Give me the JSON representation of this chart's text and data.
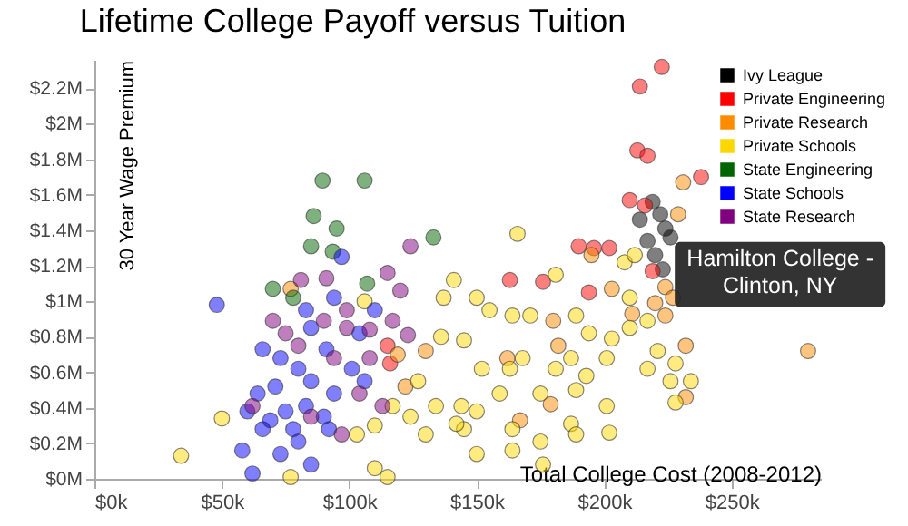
{
  "chart_data": {
    "type": "scatter",
    "title": "Lifetime College Payoff versus Tuition",
    "xlabel": "Total College Cost (2008-2012)",
    "ylabel": "30 Year Wage Premium",
    "xlim": [
      0,
      285000
    ],
    "ylim": [
      0,
      2360000
    ],
    "xticks": [
      {
        "value": 0,
        "label": "$0k"
      },
      {
        "value": 50000,
        "label": "$50k"
      },
      {
        "value": 100000,
        "label": "$100k"
      },
      {
        "value": 150000,
        "label": "$150k"
      },
      {
        "value": 200000,
        "label": "$200k"
      },
      {
        "value": 250000,
        "label": "$250k"
      }
    ],
    "yticks": [
      {
        "value": 0,
        "label": "$0M"
      },
      {
        "value": 200000,
        "label": "$0.2M"
      },
      {
        "value": 400000,
        "label": "$0.4M"
      },
      {
        "value": 600000,
        "label": "$0.6M"
      },
      {
        "value": 800000,
        "label": "$0.8M"
      },
      {
        "value": 1000000,
        "label": "$1M"
      },
      {
        "value": 1200000,
        "label": "$1.2M"
      },
      {
        "value": 1400000,
        "label": "$1.4M"
      },
      {
        "value": 1600000,
        "label": "$1.6M"
      },
      {
        "value": 1800000,
        "label": "$1.8M"
      },
      {
        "value": 2000000,
        "label": "$2M"
      },
      {
        "value": 2200000,
        "label": "$2.2M"
      }
    ],
    "grid": false,
    "legend": "top right",
    "marker": "circle",
    "annotations": [
      {
        "text": "Hamilton College -\nClinton, NY",
        "x": 222000,
        "y": 1150000
      }
    ],
    "series": [
      {
        "name": "Ivy League",
        "color": "#000000",
        "x": [
          219000,
          222000,
          214000,
          224000,
          220000,
          223000,
          217000,
          226000
        ],
        "values": [
          1560000,
          1490000,
          1460000,
          1410000,
          1260000,
          1180000,
          1340000,
          1360000
        ]
      },
      {
        "name": "Private Engineering",
        "color": "#ff0000",
        "x": [
          222600,
          214000,
          213000,
          217000,
          238000,
          210000,
          216000,
          190000,
          196000,
          202000,
          163000,
          176000,
          194000,
          219000,
          116000,
          115000
        ],
        "values": [
          2320000,
          2210000,
          1850000,
          1820000,
          1700000,
          1570000,
          1540000,
          1310000,
          1300000,
          1300000,
          1120000,
          1110000,
          1050000,
          1170000,
          650000,
          750000
        ]
      },
      {
        "name": "Private Research",
        "color": "#ff8c00",
        "x": [
          231000,
          229000,
          195000,
          203000,
          224000,
          227000,
          220000,
          180000,
          211000,
          232000,
          182000,
          280000,
          162000,
          179000,
          167000,
          232000,
          224000,
          77000,
          130000,
          122000,
          119000
        ],
        "values": [
          1670000,
          1490000,
          1260000,
          1070000,
          1080000,
          1020000,
          990000,
          890000,
          930000,
          750000,
          750000,
          720000,
          680000,
          420000,
          330000,
          460000,
          920000,
          1070000,
          720000,
          520000,
          700000
        ]
      },
      {
        "name": "Private Schools",
        "color": "#ffd700",
        "x": [
          34000,
          50000,
          77000,
          103000,
          110000,
          115000,
          110000,
          117000,
          137000,
          136000,
          106000,
          127000,
          134000,
          130000,
          124000,
          166000,
          141000,
          181000,
          155000,
          164000,
          189000,
          145000,
          152000,
          168000,
          187000,
          201000,
          210000,
          208000,
          212000,
          144000,
          159000,
          175000,
          189000,
          201000,
          217000,
          226000,
          228000,
          234000,
          228000,
          145000,
          164000,
          175000,
          187000,
          202000,
          150000,
          164000,
          176000,
          189000,
          142000,
          150000,
          163000,
          181000,
          194000,
          210000,
          217000,
          221000,
          203000,
          193000,
          171000,
          150000
        ],
        "values": [
          130000,
          340000,
          10000,
          250000,
          300000,
          10000,
          60000,
          410000,
          1020000,
          800000,
          1000000,
          550000,
          410000,
          250000,
          350000,
          1380000,
          1120000,
          1150000,
          950000,
          920000,
          920000,
          780000,
          620000,
          680000,
          680000,
          680000,
          850000,
          1220000,
          1260000,
          410000,
          480000,
          480000,
          500000,
          410000,
          620000,
          550000,
          650000,
          550000,
          430000,
          280000,
          280000,
          210000,
          310000,
          260000,
          140000,
          160000,
          80000,
          250000,
          310000,
          380000,
          620000,
          620000,
          820000,
          1020000,
          890000,
          720000,
          790000,
          580000,
          920000,
          1020000
        ]
      },
      {
        "name": "State Engineering",
        "color": "#006400",
        "x": [
          89500,
          106000,
          86000,
          95000,
          85000,
          93500,
          133000,
          70000,
          78000,
          107000
        ],
        "values": [
          1680000,
          1680000,
          1480000,
          1410000,
          1310000,
          1280000,
          1360000,
          1070000,
          1020000,
          1100000
        ]
      },
      {
        "name": "State Schools",
        "color": "#0000ff",
        "x": [
          48000,
          97000,
          62000,
          58000,
          66000,
          73000,
          80000,
          66000,
          73000,
          80000,
          85000,
          71000,
          64000,
          75000,
          83000,
          90000,
          94000,
          101000,
          104000,
          110000,
          94000,
          85000,
          78000,
          60000,
          92000,
          83000,
          106000,
          91000,
          69000,
          85000
        ],
        "values": [
          980000,
          1250000,
          30000,
          160000,
          280000,
          140000,
          210000,
          730000,
          680000,
          620000,
          550000,
          520000,
          480000,
          380000,
          410000,
          350000,
          480000,
          620000,
          820000,
          950000,
          1020000,
          850000,
          280000,
          380000,
          280000,
          950000,
          550000,
          730000,
          330000,
          80000
        ]
      },
      {
        "name": "State Research",
        "color": "#800080",
        "x": [
          124000,
          81000,
          91000,
          115000,
          120000,
          70000,
          75000,
          90000,
          99000,
          108000,
          117000,
          123000,
          80000,
          94000,
          108000,
          62000,
          97000,
          104000,
          85000,
          99000,
          113000
        ],
        "values": [
          1310000,
          1120000,
          1130000,
          1160000,
          1060000,
          890000,
          820000,
          890000,
          950000,
          840000,
          890000,
          810000,
          750000,
          680000,
          680000,
          410000,
          250000,
          480000,
          350000,
          850000,
          410000
        ]
      }
    ]
  }
}
